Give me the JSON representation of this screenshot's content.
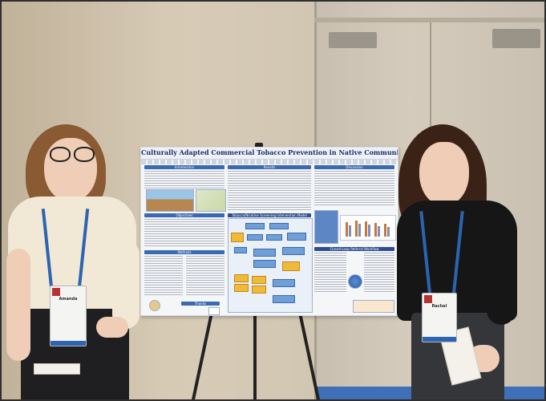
{
  "poster": {
    "title": "Culturally Adapted Commercial Tobacco Prevention in Native Communities",
    "sections": {
      "introduction": "Introduction",
      "results": "Results",
      "discussion": "Discussion",
      "objectives": "Objectives",
      "methods": "Methods",
      "model": "Tobacco/Nicotine Screening Intervention Model",
      "workflow": "Closed-Loop Referral Workflow",
      "thanks": "Thanks"
    }
  },
  "badges": {
    "left_name": "Amanda",
    "right_name": "Rachel"
  },
  "colors": {
    "poster_accent": "#3b6ab0",
    "title_color": "#1c2f66",
    "lanyard": "#2c64b0"
  }
}
